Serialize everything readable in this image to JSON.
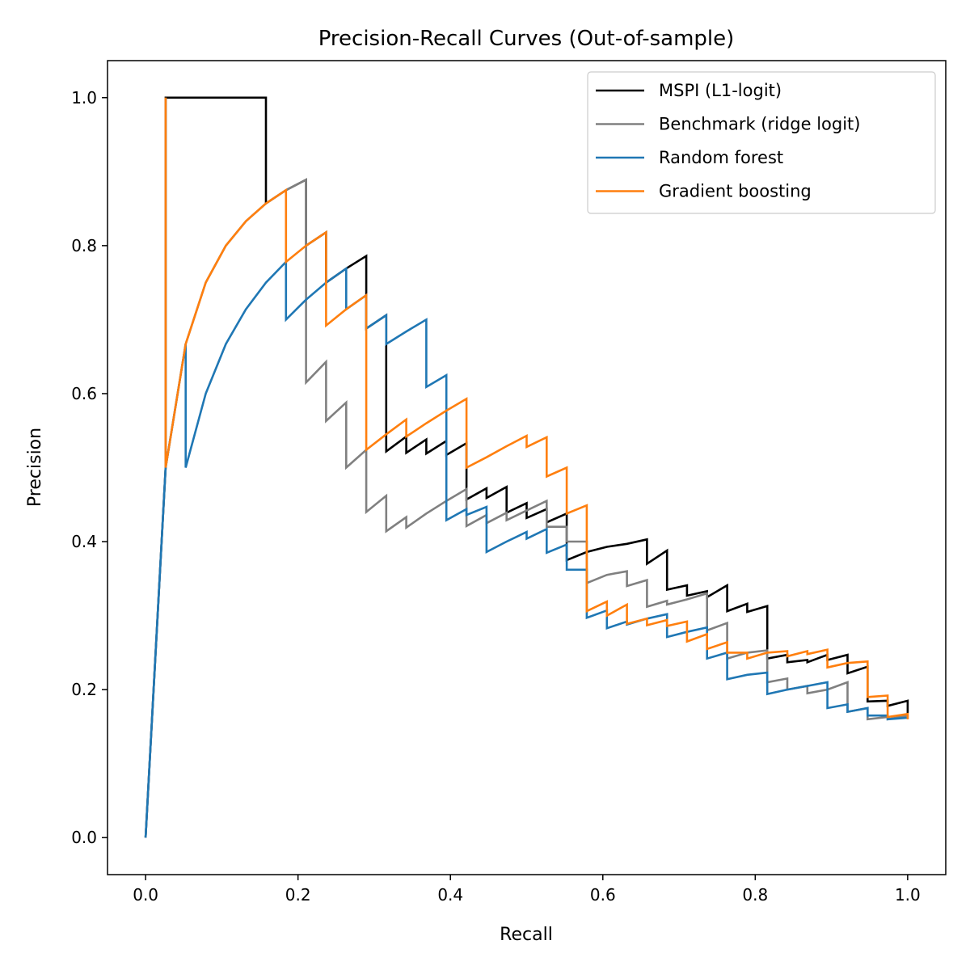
{
  "chart_data": {
    "type": "line",
    "title": "Precision-Recall Curves (Out-of-sample)",
    "xlabel": "Recall",
    "ylabel": "Precision",
    "xlim": [
      -0.05,
      1.05
    ],
    "ylim": [
      -0.05,
      1.05
    ],
    "xticks": [
      0.0,
      0.2,
      0.4,
      0.6,
      0.8,
      1.0
    ],
    "xtick_labels": [
      "0.0",
      "0.2",
      "0.4",
      "0.6",
      "0.8",
      "1.0"
    ],
    "yticks": [
      0.0,
      0.2,
      0.4,
      0.6,
      0.8,
      1.0
    ],
    "ytick_labels": [
      "0.0",
      "0.2",
      "0.4",
      "0.6",
      "0.8",
      "1.0"
    ],
    "grid": false,
    "legend_position": "top-right",
    "series": [
      {
        "name": "MSPI (L1-logit)",
        "color": "#000000",
        "points": [
          [
            0.0,
            0.0
          ],
          [
            0.0263,
            0.5
          ],
          [
            0.0263,
            1.0
          ],
          [
            0.1579,
            1.0
          ],
          [
            0.1579,
            0.857
          ],
          [
            0.1842,
            0.875
          ],
          [
            0.2105,
            0.889
          ],
          [
            0.2105,
            0.8
          ],
          [
            0.2368,
            0.818
          ],
          [
            0.2368,
            0.75
          ],
          [
            0.2632,
            0.769
          ],
          [
            0.2895,
            0.786
          ],
          [
            0.2895,
            0.688
          ],
          [
            0.3158,
            0.706
          ],
          [
            0.3158,
            0.522
          ],
          [
            0.3421,
            0.542
          ],
          [
            0.3421,
            0.52
          ],
          [
            0.3684,
            0.538
          ],
          [
            0.3684,
            0.519
          ],
          [
            0.3947,
            0.536
          ],
          [
            0.3947,
            0.517
          ],
          [
            0.4211,
            0.533
          ],
          [
            0.4211,
            0.457
          ],
          [
            0.4474,
            0.472
          ],
          [
            0.4474,
            0.459
          ],
          [
            0.4737,
            0.474
          ],
          [
            0.4737,
            0.439
          ],
          [
            0.5,
            0.452
          ],
          [
            0.5,
            0.432
          ],
          [
            0.5263,
            0.444
          ],
          [
            0.5263,
            0.426
          ],
          [
            0.5526,
            0.438
          ],
          [
            0.5526,
            0.4
          ],
          [
            0.5526,
            0.375
          ],
          [
            0.5789,
            0.386
          ],
          [
            0.6053,
            0.393
          ],
          [
            0.6316,
            0.397
          ],
          [
            0.6579,
            0.403
          ],
          [
            0.6579,
            0.37
          ],
          [
            0.6842,
            0.388
          ],
          [
            0.6842,
            0.335
          ],
          [
            0.7105,
            0.341
          ],
          [
            0.7105,
            0.327
          ],
          [
            0.7368,
            0.333
          ],
          [
            0.7368,
            0.325
          ],
          [
            0.7632,
            0.341
          ],
          [
            0.7632,
            0.306
          ],
          [
            0.7895,
            0.316
          ],
          [
            0.7895,
            0.305
          ],
          [
            0.8158,
            0.313
          ],
          [
            0.8158,
            0.242
          ],
          [
            0.8421,
            0.247
          ],
          [
            0.8421,
            0.237
          ],
          [
            0.8684,
            0.24
          ],
          [
            0.8684,
            0.237
          ],
          [
            0.8947,
            0.247
          ],
          [
            0.8947,
            0.24
          ],
          [
            0.9211,
            0.247
          ],
          [
            0.9211,
            0.222
          ],
          [
            0.9474,
            0.231
          ],
          [
            0.9474,
            0.184
          ],
          [
            0.9737,
            0.185
          ],
          [
            0.9737,
            0.178
          ],
          [
            1.0,
            0.185
          ],
          [
            1.0,
            0.168
          ]
        ]
      },
      {
        "name": "Benchmark (ridge logit)",
        "color": "#808080",
        "points": [
          [
            0.0,
            0.0
          ],
          [
            0.0263,
            0.5
          ],
          [
            0.0263,
            1.0
          ],
          [
            0.0263,
            0.5
          ],
          [
            0.0526,
            0.667
          ],
          [
            0.0789,
            0.75
          ],
          [
            0.1053,
            0.8
          ],
          [
            0.1316,
            0.833
          ],
          [
            0.1579,
            0.857
          ],
          [
            0.1842,
            0.875
          ],
          [
            0.2105,
            0.889
          ],
          [
            0.2105,
            0.615
          ],
          [
            0.2368,
            0.643
          ],
          [
            0.2368,
            0.563
          ],
          [
            0.2632,
            0.588
          ],
          [
            0.2632,
            0.5
          ],
          [
            0.2895,
            0.524
          ],
          [
            0.2895,
            0.44
          ],
          [
            0.3158,
            0.462
          ],
          [
            0.3158,
            0.414
          ],
          [
            0.3421,
            0.433
          ],
          [
            0.3421,
            0.419
          ],
          [
            0.3684,
            0.438
          ],
          [
            0.3947,
            0.455
          ],
          [
            0.4211,
            0.471
          ],
          [
            0.4211,
            0.421
          ],
          [
            0.4474,
            0.436
          ],
          [
            0.4474,
            0.425
          ],
          [
            0.4737,
            0.439
          ],
          [
            0.4737,
            0.429
          ],
          [
            0.5,
            0.442
          ],
          [
            0.5263,
            0.455
          ],
          [
            0.5263,
            0.42
          ],
          [
            0.5526,
            0.42
          ],
          [
            0.5526,
            0.4
          ],
          [
            0.5789,
            0.4
          ],
          [
            0.5789,
            0.344
          ],
          [
            0.6053,
            0.355
          ],
          [
            0.6316,
            0.36
          ],
          [
            0.6316,
            0.34
          ],
          [
            0.6579,
            0.348
          ],
          [
            0.6579,
            0.312
          ],
          [
            0.6842,
            0.32
          ],
          [
            0.6842,
            0.315
          ],
          [
            0.7105,
            0.322
          ],
          [
            0.7368,
            0.33
          ],
          [
            0.7368,
            0.28
          ],
          [
            0.7632,
            0.29
          ],
          [
            0.7632,
            0.242
          ],
          [
            0.7895,
            0.25
          ],
          [
            0.8158,
            0.253
          ],
          [
            0.8158,
            0.21
          ],
          [
            0.8421,
            0.215
          ],
          [
            0.8421,
            0.2
          ],
          [
            0.8684,
            0.205
          ],
          [
            0.8684,
            0.195
          ],
          [
            0.8947,
            0.2
          ],
          [
            0.9211,
            0.21
          ],
          [
            0.9211,
            0.17
          ],
          [
            0.9474,
            0.175
          ],
          [
            0.9474,
            0.16
          ],
          [
            0.9737,
            0.163
          ],
          [
            0.9737,
            0.16
          ],
          [
            1.0,
            0.165
          ],
          [
            1.0,
            0.16
          ]
        ]
      },
      {
        "name": "Random forest",
        "color": "#1f77b4",
        "points": [
          [
            0.0,
            0.0
          ],
          [
            0.0263,
            0.5
          ],
          [
            0.0526,
            0.667
          ],
          [
            0.0526,
            0.5
          ],
          [
            0.0789,
            0.6
          ],
          [
            0.1053,
            0.667
          ],
          [
            0.1316,
            0.714
          ],
          [
            0.1579,
            0.75
          ],
          [
            0.1842,
            0.778
          ],
          [
            0.1842,
            0.7
          ],
          [
            0.2105,
            0.727
          ],
          [
            0.2368,
            0.75
          ],
          [
            0.2632,
            0.769
          ],
          [
            0.2632,
            0.714
          ],
          [
            0.2895,
            0.733
          ],
          [
            0.2895,
            0.688
          ],
          [
            0.3158,
            0.706
          ],
          [
            0.3158,
            0.667
          ],
          [
            0.3421,
            0.684
          ],
          [
            0.3684,
            0.7
          ],
          [
            0.3684,
            0.609
          ],
          [
            0.3947,
            0.625
          ],
          [
            0.3947,
            0.429
          ],
          [
            0.4211,
            0.444
          ],
          [
            0.4211,
            0.436
          ],
          [
            0.4474,
            0.447
          ],
          [
            0.4474,
            0.386
          ],
          [
            0.4737,
            0.4
          ],
          [
            0.5,
            0.413
          ],
          [
            0.5,
            0.404
          ],
          [
            0.5263,
            0.417
          ],
          [
            0.5263,
            0.385
          ],
          [
            0.5526,
            0.396
          ],
          [
            0.5526,
            0.362
          ],
          [
            0.5789,
            0.362
          ],
          [
            0.5789,
            0.297
          ],
          [
            0.6053,
            0.307
          ],
          [
            0.6053,
            0.283
          ],
          [
            0.6316,
            0.292
          ],
          [
            0.6316,
            0.288
          ],
          [
            0.6579,
            0.296
          ],
          [
            0.6842,
            0.302
          ],
          [
            0.6842,
            0.271
          ],
          [
            0.7105,
            0.278
          ],
          [
            0.7368,
            0.284
          ],
          [
            0.7368,
            0.242
          ],
          [
            0.7632,
            0.25
          ],
          [
            0.7632,
            0.214
          ],
          [
            0.7895,
            0.22
          ],
          [
            0.8158,
            0.223
          ],
          [
            0.8158,
            0.194
          ],
          [
            0.8421,
            0.2
          ],
          [
            0.8684,
            0.205
          ],
          [
            0.8947,
            0.21
          ],
          [
            0.8947,
            0.175
          ],
          [
            0.9211,
            0.18
          ],
          [
            0.9211,
            0.17
          ],
          [
            0.9474,
            0.175
          ],
          [
            0.9474,
            0.165
          ],
          [
            0.9737,
            0.165
          ],
          [
            0.9737,
            0.16
          ],
          [
            1.0,
            0.162
          ]
        ]
      },
      {
        "name": "Gradient boosting",
        "color": "#ff7f0e",
        "points": [
          [
            0.0263,
            0.5
          ],
          [
            0.0263,
            1.0
          ],
          [
            0.0263,
            0.5
          ],
          [
            0.0526,
            0.667
          ],
          [
            0.0789,
            0.75
          ],
          [
            0.1053,
            0.8
          ],
          [
            0.1316,
            0.833
          ],
          [
            0.1579,
            0.857
          ],
          [
            0.1842,
            0.875
          ],
          [
            0.1842,
            0.778
          ],
          [
            0.2105,
            0.8
          ],
          [
            0.2368,
            0.818
          ],
          [
            0.2368,
            0.692
          ],
          [
            0.2632,
            0.714
          ],
          [
            0.2895,
            0.733
          ],
          [
            0.2895,
            0.524
          ],
          [
            0.3158,
            0.545
          ],
          [
            0.3421,
            0.565
          ],
          [
            0.3421,
            0.542
          ],
          [
            0.3684,
            0.56
          ],
          [
            0.3947,
            0.577
          ],
          [
            0.4211,
            0.593
          ],
          [
            0.4211,
            0.5
          ],
          [
            0.4474,
            0.514
          ],
          [
            0.4737,
            0.529
          ],
          [
            0.5,
            0.543
          ],
          [
            0.5,
            0.528
          ],
          [
            0.5263,
            0.541
          ],
          [
            0.5263,
            0.488
          ],
          [
            0.5526,
            0.5
          ],
          [
            0.5526,
            0.438
          ],
          [
            0.5789,
            0.449
          ],
          [
            0.5789,
            0.306
          ],
          [
            0.6053,
            0.319
          ],
          [
            0.6053,
            0.3
          ],
          [
            0.6316,
            0.315
          ],
          [
            0.6316,
            0.289
          ],
          [
            0.6579,
            0.296
          ],
          [
            0.6579,
            0.287
          ],
          [
            0.6842,
            0.294
          ],
          [
            0.6842,
            0.286
          ],
          [
            0.7105,
            0.292
          ],
          [
            0.7105,
            0.265
          ],
          [
            0.7368,
            0.275
          ],
          [
            0.7368,
            0.255
          ],
          [
            0.7632,
            0.264
          ],
          [
            0.7632,
            0.25
          ],
          [
            0.7895,
            0.25
          ],
          [
            0.7895,
            0.242
          ],
          [
            0.8158,
            0.25
          ],
          [
            0.8421,
            0.252
          ],
          [
            0.8421,
            0.245
          ],
          [
            0.8684,
            0.252
          ],
          [
            0.8684,
            0.248
          ],
          [
            0.8947,
            0.254
          ],
          [
            0.8947,
            0.23
          ],
          [
            0.9211,
            0.236
          ],
          [
            0.9474,
            0.238
          ],
          [
            0.9474,
            0.19
          ],
          [
            0.9737,
            0.192
          ],
          [
            0.9737,
            0.163
          ],
          [
            1.0,
            0.167
          ],
          [
            1.0,
            0.16
          ]
        ]
      }
    ]
  }
}
